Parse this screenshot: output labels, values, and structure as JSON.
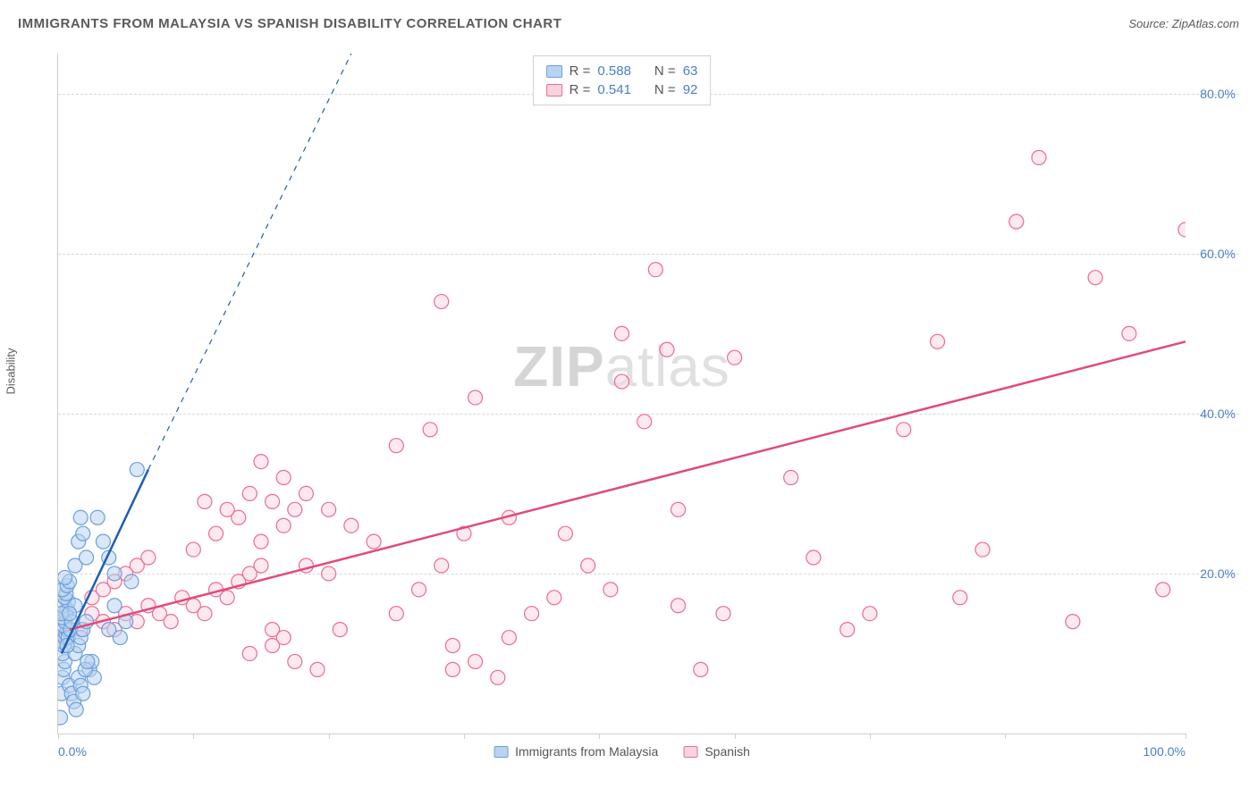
{
  "header": {
    "title": "IMMIGRANTS FROM MALAYSIA VS SPANISH DISABILITY CORRELATION CHART",
    "source_prefix": "Source: ",
    "source": "ZipAtlas.com"
  },
  "y_axis": {
    "label": "Disability"
  },
  "watermark": {
    "part1": "ZIP",
    "part2": "atlas"
  },
  "chart": {
    "type": "scatter",
    "xlim": [
      0,
      100
    ],
    "ylim": [
      0,
      85
    ],
    "x_ticks": [
      0,
      12,
      24,
      36,
      48,
      60,
      72,
      84,
      100
    ],
    "x_tick_labels": {
      "0": "0.0%",
      "100": "100.0%"
    },
    "y_gridlines": [
      20,
      40,
      60,
      80
    ],
    "y_tick_labels": {
      "20": "20.0%",
      "40": "40.0%",
      "60": "60.0%",
      "80": "80.0%"
    },
    "background_color": "#ffffff",
    "grid_color": "#d8d8d8",
    "axis_color": "#cfcfcf",
    "tick_label_color": "#4a7ec7",
    "marker_radius": 8,
    "marker_stroke_width": 1.2,
    "trend_line_width": 2.5,
    "series": {
      "blue": {
        "label": "Immigrants from Malaysia",
        "R": "0.588",
        "N": "63",
        "fill": "#b9d4f1",
        "stroke": "#6b9fdc",
        "line_color": "#1f5fb0",
        "fill_opacity": 0.55,
        "trend": {
          "x1": 0.3,
          "y1": 10,
          "x2": 8,
          "y2": 33
        },
        "trend_dashed_ext": {
          "x1": 8,
          "y1": 33,
          "x2": 26,
          "y2": 85
        },
        "points": [
          [
            0.2,
            2
          ],
          [
            0.3,
            5
          ],
          [
            0.4,
            7
          ],
          [
            0.5,
            8
          ],
          [
            0.6,
            9
          ],
          [
            0.4,
            10
          ],
          [
            0.5,
            11
          ],
          [
            0.3,
            11.5
          ],
          [
            0.6,
            12
          ],
          [
            0.7,
            12.5
          ],
          [
            0.8,
            13
          ],
          [
            0.5,
            13.5
          ],
          [
            0.6,
            14
          ],
          [
            0.4,
            14.5
          ],
          [
            0.7,
            15
          ],
          [
            0.8,
            15.5
          ],
          [
            0.5,
            16
          ],
          [
            0.9,
            16.5
          ],
          [
            0.6,
            17
          ],
          [
            0.7,
            17.5
          ],
          [
            0.4,
            18
          ],
          [
            0.8,
            18.5
          ],
          [
            1.0,
            19
          ],
          [
            0.6,
            19.5
          ],
          [
            0.9,
            12
          ],
          [
            1.1,
            13
          ],
          [
            1.2,
            14
          ],
          [
            0.3,
            15
          ],
          [
            1.5,
            10
          ],
          [
            1.8,
            11
          ],
          [
            2.0,
            12
          ],
          [
            2.2,
            13
          ],
          [
            2.5,
            14
          ],
          [
            1.5,
            16
          ],
          [
            2.8,
            8
          ],
          [
            3.0,
            9
          ],
          [
            3.2,
            7
          ],
          [
            1.0,
            6
          ],
          [
            1.2,
            5
          ],
          [
            1.4,
            4
          ],
          [
            1.6,
            3
          ],
          [
            1.8,
            7
          ],
          [
            2.0,
            6
          ],
          [
            2.2,
            5
          ],
          [
            2.4,
            8
          ],
          [
            2.6,
            9
          ],
          [
            4.5,
            13
          ],
          [
            5.0,
            16
          ],
          [
            5.5,
            12
          ],
          [
            6.0,
            14
          ],
          [
            6.5,
            19
          ],
          [
            1.5,
            21
          ],
          [
            2.5,
            22
          ],
          [
            1.8,
            24
          ],
          [
            2.2,
            25
          ],
          [
            2.0,
            27
          ],
          [
            3.5,
            27
          ],
          [
            4.0,
            24
          ],
          [
            4.5,
            22
          ],
          [
            5.0,
            20
          ],
          [
            7.0,
            33
          ],
          [
            1.0,
            15
          ],
          [
            0.8,
            11
          ]
        ]
      },
      "pink": {
        "label": "Spanish",
        "R": "0.541",
        "N": "92",
        "fill": "#fbd3de",
        "stroke": "#ec6a94",
        "line_color": "#e14b7a",
        "fill_opacity": 0.5,
        "trend": {
          "x1": 1,
          "y1": 13,
          "x2": 100,
          "y2": 49
        },
        "points": [
          [
            2,
            13
          ],
          [
            3,
            15
          ],
          [
            4,
            14
          ],
          [
            5,
            13
          ],
          [
            6,
            15
          ],
          [
            7,
            14
          ],
          [
            8,
            16
          ],
          [
            3,
            17
          ],
          [
            4,
            18
          ],
          [
            5,
            19
          ],
          [
            6,
            20
          ],
          [
            7,
            21
          ],
          [
            8,
            22
          ],
          [
            9,
            15
          ],
          [
            10,
            14
          ],
          [
            11,
            17
          ],
          [
            12,
            16
          ],
          [
            13,
            15
          ],
          [
            14,
            18
          ],
          [
            15,
            17
          ],
          [
            16,
            19
          ],
          [
            17,
            20
          ],
          [
            18,
            21
          ],
          [
            19,
            13
          ],
          [
            20,
            12
          ],
          [
            12,
            23
          ],
          [
            14,
            25
          ],
          [
            16,
            27
          ],
          [
            18,
            24
          ],
          [
            20,
            26
          ],
          [
            22,
            21
          ],
          [
            24,
            20
          ],
          [
            17,
            10
          ],
          [
            19,
            11
          ],
          [
            21,
            9
          ],
          [
            23,
            8
          ],
          [
            25,
            13
          ],
          [
            13,
            29
          ],
          [
            15,
            28
          ],
          [
            17,
            30
          ],
          [
            19,
            29
          ],
          [
            21,
            28
          ],
          [
            30,
            15
          ],
          [
            32,
            18
          ],
          [
            34,
            21
          ],
          [
            28,
            24
          ],
          [
            26,
            26
          ],
          [
            24,
            28
          ],
          [
            22,
            30
          ],
          [
            20,
            32
          ],
          [
            18,
            34
          ],
          [
            30,
            36
          ],
          [
            35,
            11
          ],
          [
            37,
            9
          ],
          [
            39,
            7
          ],
          [
            33,
            38
          ],
          [
            35,
            8
          ],
          [
            37,
            42
          ],
          [
            36,
            25
          ],
          [
            40,
            12
          ],
          [
            42,
            15
          ],
          [
            44,
            17
          ],
          [
            34,
            54
          ],
          [
            45,
            25
          ],
          [
            47,
            21
          ],
          [
            49,
            18
          ],
          [
            40,
            27
          ],
          [
            50,
            44
          ],
          [
            52,
            39
          ],
          [
            54,
            48
          ],
          [
            55,
            16
          ],
          [
            57,
            8
          ],
          [
            59,
            15
          ],
          [
            50,
            50
          ],
          [
            55,
            28
          ],
          [
            60,
            47
          ],
          [
            53,
            58
          ],
          [
            65,
            32
          ],
          [
            67,
            22
          ],
          [
            70,
            13
          ],
          [
            72,
            15
          ],
          [
            75,
            38
          ],
          [
            78,
            49
          ],
          [
            80,
            17
          ],
          [
            82,
            23
          ],
          [
            85,
            64
          ],
          [
            87,
            72
          ],
          [
            90,
            14
          ],
          [
            92,
            57
          ],
          [
            95,
            50
          ],
          [
            98,
            18
          ],
          [
            100,
            63
          ]
        ]
      }
    }
  },
  "legend_top": {
    "rows": [
      {
        "series": "blue",
        "R_label": "R =",
        "N_label": "N ="
      },
      {
        "series": "pink",
        "R_label": "R =",
        "N_label": "N ="
      }
    ]
  }
}
